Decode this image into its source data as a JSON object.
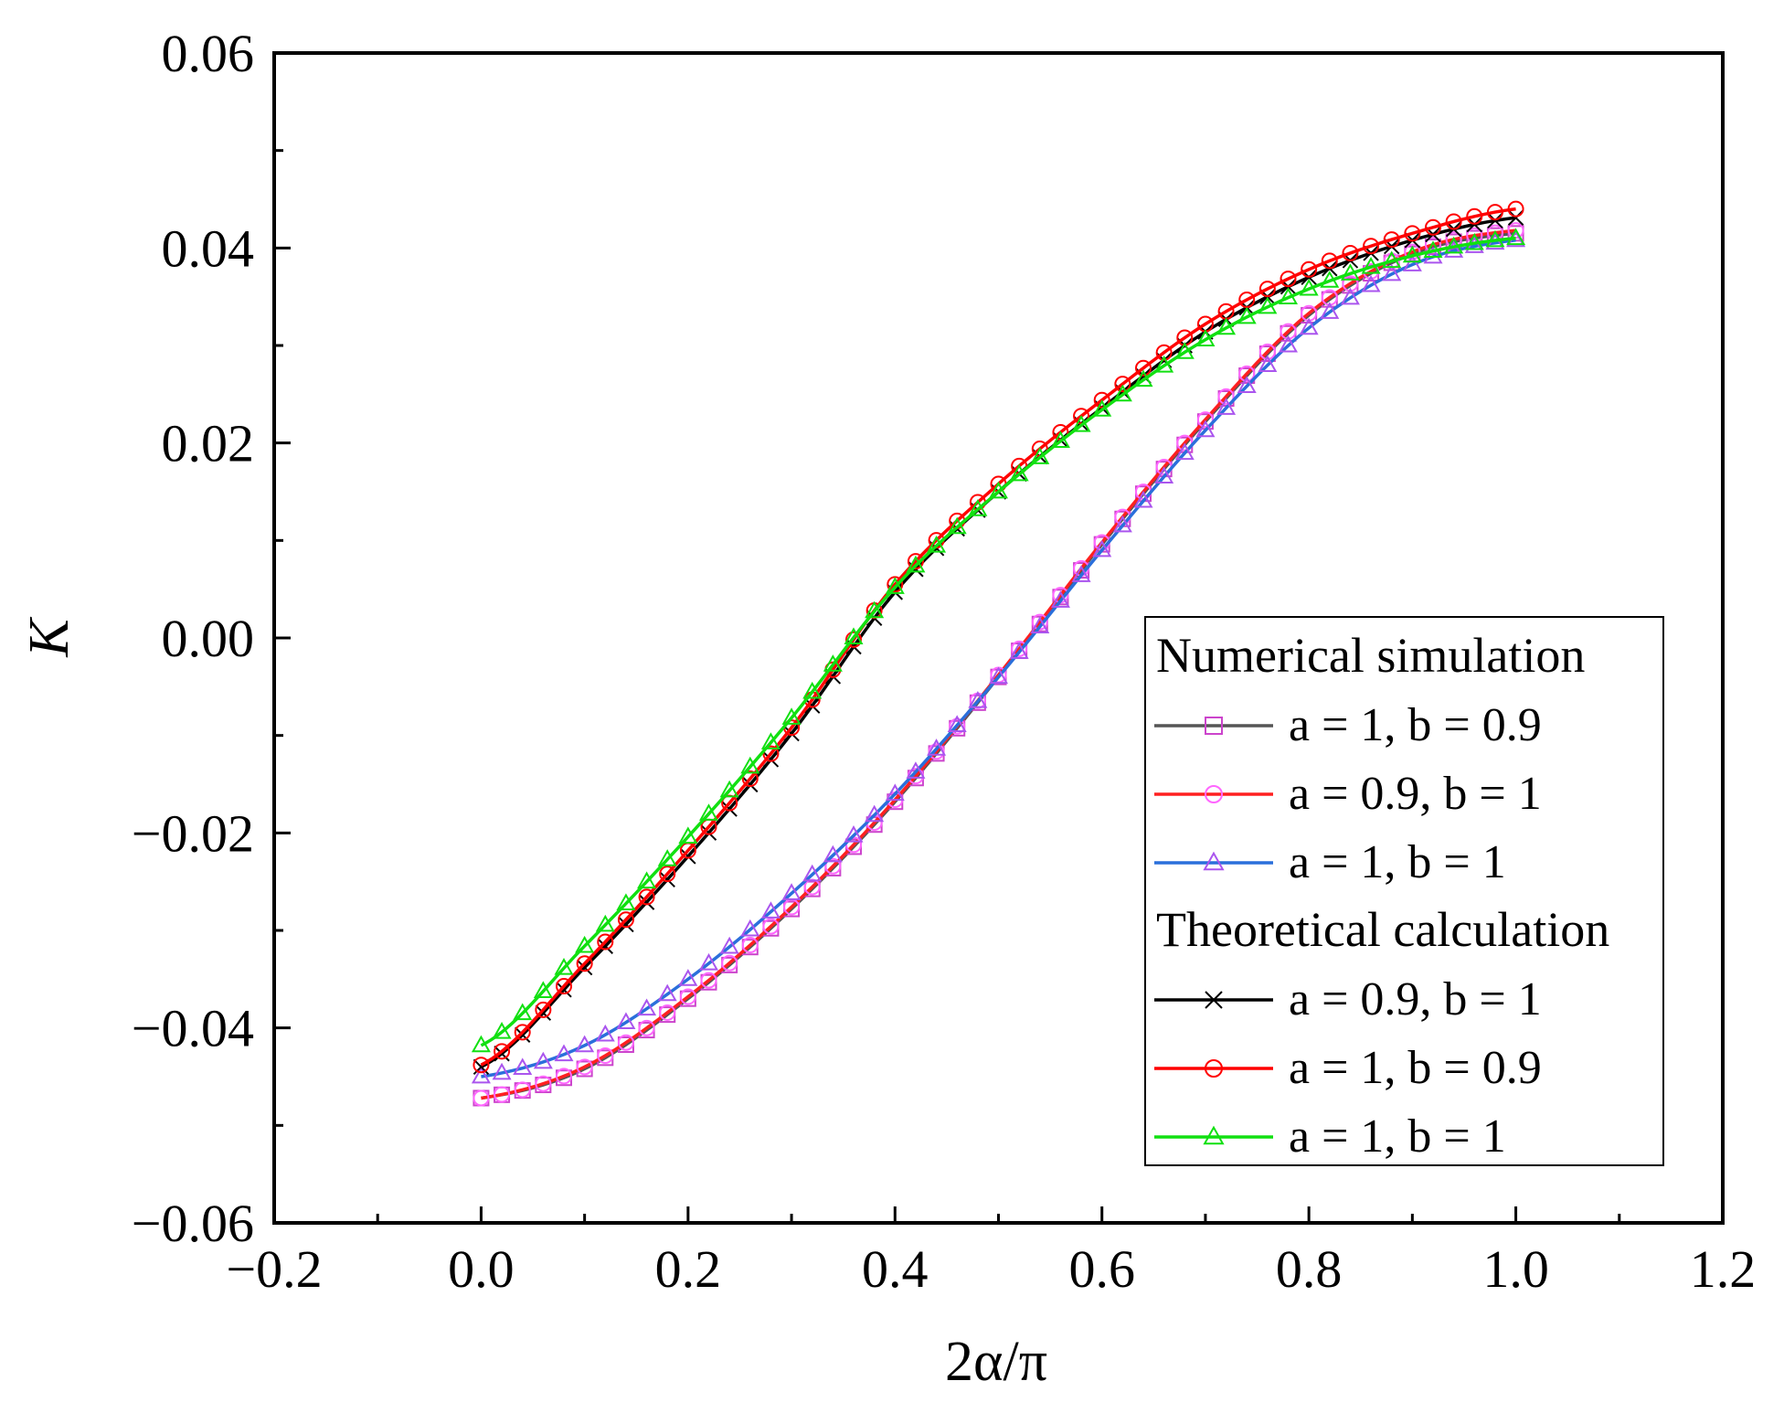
{
  "chart_data": {
    "type": "line",
    "title": "",
    "xlabel": "2α/π",
    "ylabel": "K",
    "xlim": [
      -0.2,
      1.2
    ],
    "ylim": [
      -0.06,
      0.06
    ],
    "x_ticks": [
      -0.2,
      0.0,
      0.2,
      0.4,
      0.6,
      0.8,
      1.0,
      1.2
    ],
    "x_tick_labels": [
      "−0.2",
      "0.0",
      "0.2",
      "0.4",
      "0.6",
      "0.8",
      "1.0",
      "1.2"
    ],
    "y_ticks": [
      -0.06,
      -0.04,
      -0.02,
      0.0,
      0.02,
      0.04,
      0.06
    ],
    "y_tick_labels": [
      "−0.06",
      "−0.04",
      "−0.02",
      "0.00",
      "0.02",
      "0.04",
      "0.06"
    ],
    "legend": {
      "position": "lower-right",
      "groups": [
        {
          "heading": "Numerical simulation",
          "entries": [
            {
              "label": "a = 1, b = 0.9",
              "series": "num_a1_b09"
            },
            {
              "label": "a = 0.9, b = 1",
              "series": "num_a09_b1"
            },
            {
              "label": "a = 1, b = 1",
              "series": "num_a1_b1"
            }
          ]
        },
        {
          "heading": "Theoretical calculation",
          "entries": [
            {
              "label": "a = 0.9, b = 1",
              "series": "th_a09_b1"
            },
            {
              "label": "a = 1, b = 0.9",
              "series": "th_a1_b09"
            },
            {
              "label": "a = 1, b = 1",
              "series": "th_a1_b1"
            }
          ]
        }
      ]
    },
    "series": [
      {
        "id": "num_a1_b09",
        "name": "a = 1, b = 0.9 (Numerical simulation)",
        "line_color": "#555555",
        "marker": "square",
        "marker_color": "#cc44cc",
        "x": [
          0.0,
          0.1,
          0.2,
          0.3,
          0.4,
          0.5,
          0.6,
          0.7,
          0.8,
          0.9,
          1.0
        ],
        "y": [
          -0.0472,
          -0.0442,
          -0.037,
          -0.0278,
          -0.0168,
          -0.004,
          0.0096,
          0.0222,
          0.0331,
          0.0394,
          0.0415
        ]
      },
      {
        "id": "num_a09_b1",
        "name": "a = 0.9, b = 1 (Numerical simulation)",
        "line_color": "#ff2020",
        "marker": "circle",
        "marker_color": "#ff66ff",
        "x": [
          0.0,
          0.1,
          0.2,
          0.3,
          0.4,
          0.5,
          0.6,
          0.7,
          0.8,
          0.9,
          1.0
        ],
        "y": [
          -0.0472,
          -0.044,
          -0.0368,
          -0.0276,
          -0.0166,
          -0.0038,
          0.0098,
          0.0224,
          0.0333,
          0.0396,
          0.0418
        ]
      },
      {
        "id": "num_a1_b1",
        "name": "a = 1, b = 1 (Numerical simulation)",
        "line_color": "#2a6fdb",
        "marker": "triangle",
        "marker_color": "#aa55ee",
        "x": [
          0.0,
          0.1,
          0.2,
          0.3,
          0.4,
          0.5,
          0.6,
          0.7,
          0.8,
          0.9,
          1.0
        ],
        "y": [
          -0.045,
          -0.0418,
          -0.035,
          -0.0262,
          -0.016,
          -0.004,
          0.009,
          0.0213,
          0.0318,
          0.0383,
          0.0408
        ]
      },
      {
        "id": "th_a09_b1",
        "name": "a = 0.9, b = 1 (Theoretical calculation)",
        "line_color": "#000000",
        "marker": "cross",
        "marker_color": "#000000",
        "x": [
          0.0,
          0.1,
          0.2,
          0.3,
          0.4,
          0.5,
          0.6,
          0.7,
          0.8,
          0.9,
          1.0
        ],
        "y": [
          -0.044,
          -0.0338,
          -0.0224,
          -0.0098,
          0.0047,
          0.015,
          0.0236,
          0.0314,
          0.037,
          0.0408,
          0.0431
        ]
      },
      {
        "id": "th_a1_b09",
        "name": "a = 1, b = 0.9 (Theoretical calculation)",
        "line_color": "#ff0000",
        "marker": "circle",
        "marker_color": "#ff0000",
        "x": [
          0.0,
          0.1,
          0.2,
          0.3,
          0.4,
          0.5,
          0.6,
          0.7,
          0.8,
          0.9,
          1.0
        ],
        "y": [
          -0.0438,
          -0.0334,
          -0.0218,
          -0.0092,
          0.0055,
          0.0158,
          0.0244,
          0.0322,
          0.0378,
          0.0415,
          0.044
        ]
      },
      {
        "id": "th_a1_b1",
        "name": "a = 1, b = 1 (Theoretical calculation)",
        "line_color": "#11e011",
        "marker": "triangle",
        "marker_color": "#11e011",
        "x": [
          0.0,
          0.1,
          0.2,
          0.3,
          0.4,
          0.5,
          0.6,
          0.7,
          0.8,
          0.9,
          1.0
        ],
        "y": [
          -0.0418,
          -0.0316,
          -0.0204,
          -0.0082,
          0.0052,
          0.015,
          0.0234,
          0.0306,
          0.0358,
          0.0392,
          0.041
        ]
      }
    ]
  }
}
